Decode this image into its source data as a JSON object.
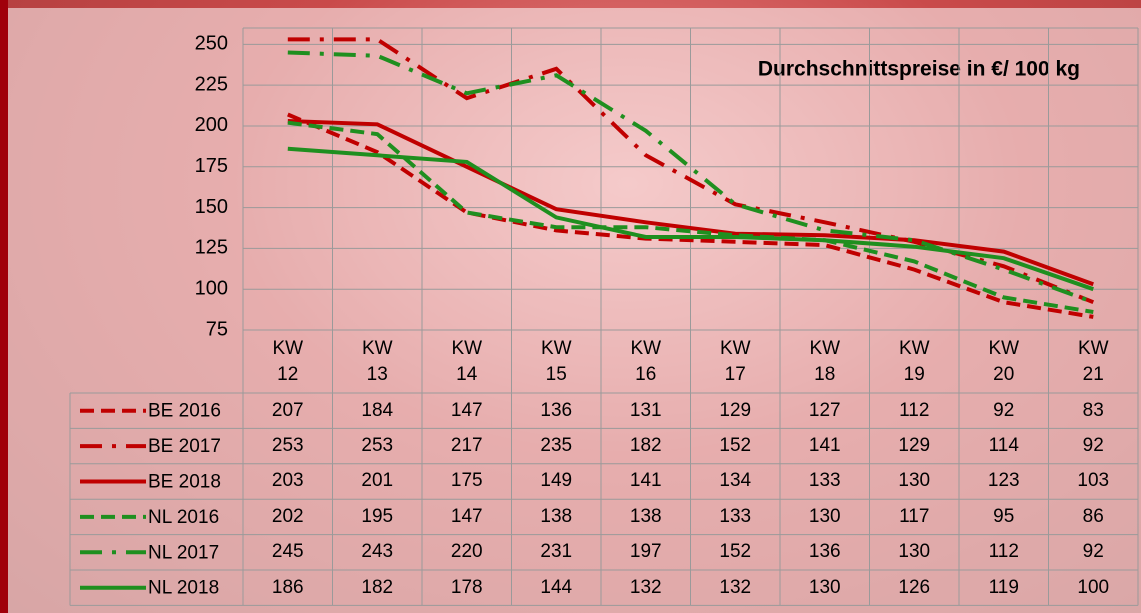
{
  "chart_data": {
    "type": "line",
    "title": "Durchschnittspreise in €/ 100 kg",
    "categories": [
      "KW 12",
      "KW 13",
      "KW 14",
      "KW 15",
      "KW 16",
      "KW 17",
      "KW 18",
      "KW 19",
      "KW 20",
      "KW 21"
    ],
    "series": [
      {
        "name": "BE 2016",
        "color": "#c00000",
        "line_style": "dashed",
        "values": [
          207,
          184,
          147,
          136,
          131,
          129,
          127,
          112,
          92,
          83
        ]
      },
      {
        "name": "BE 2017",
        "color": "#c00000",
        "line_style": "dashdot",
        "values": [
          253,
          253,
          217,
          235,
          182,
          152,
          141,
          129,
          114,
          92
        ]
      },
      {
        "name": "BE 2018",
        "color": "#c00000",
        "line_style": "solid",
        "values": [
          203,
          201,
          175,
          149,
          141,
          134,
          133,
          130,
          123,
          103
        ]
      },
      {
        "name": "NL 2016",
        "color": "#1f8f1f",
        "line_style": "dashed",
        "values": [
          202,
          195,
          147,
          138,
          138,
          133,
          130,
          117,
          95,
          86
        ]
      },
      {
        "name": "NL 2017",
        "color": "#1f8f1f",
        "line_style": "dashdot",
        "values": [
          245,
          243,
          220,
          231,
          197,
          152,
          136,
          130,
          112,
          92
        ]
      },
      {
        "name": "NL 2018",
        "color": "#1f8f1f",
        "line_style": "solid",
        "values": [
          186,
          182,
          178,
          144,
          132,
          132,
          130,
          126,
          119,
          100
        ]
      }
    ],
    "ylim": [
      75,
      260
    ],
    "yticks": [
      75,
      100,
      125,
      150,
      175,
      200,
      225,
      250
    ],
    "grid": true
  }
}
